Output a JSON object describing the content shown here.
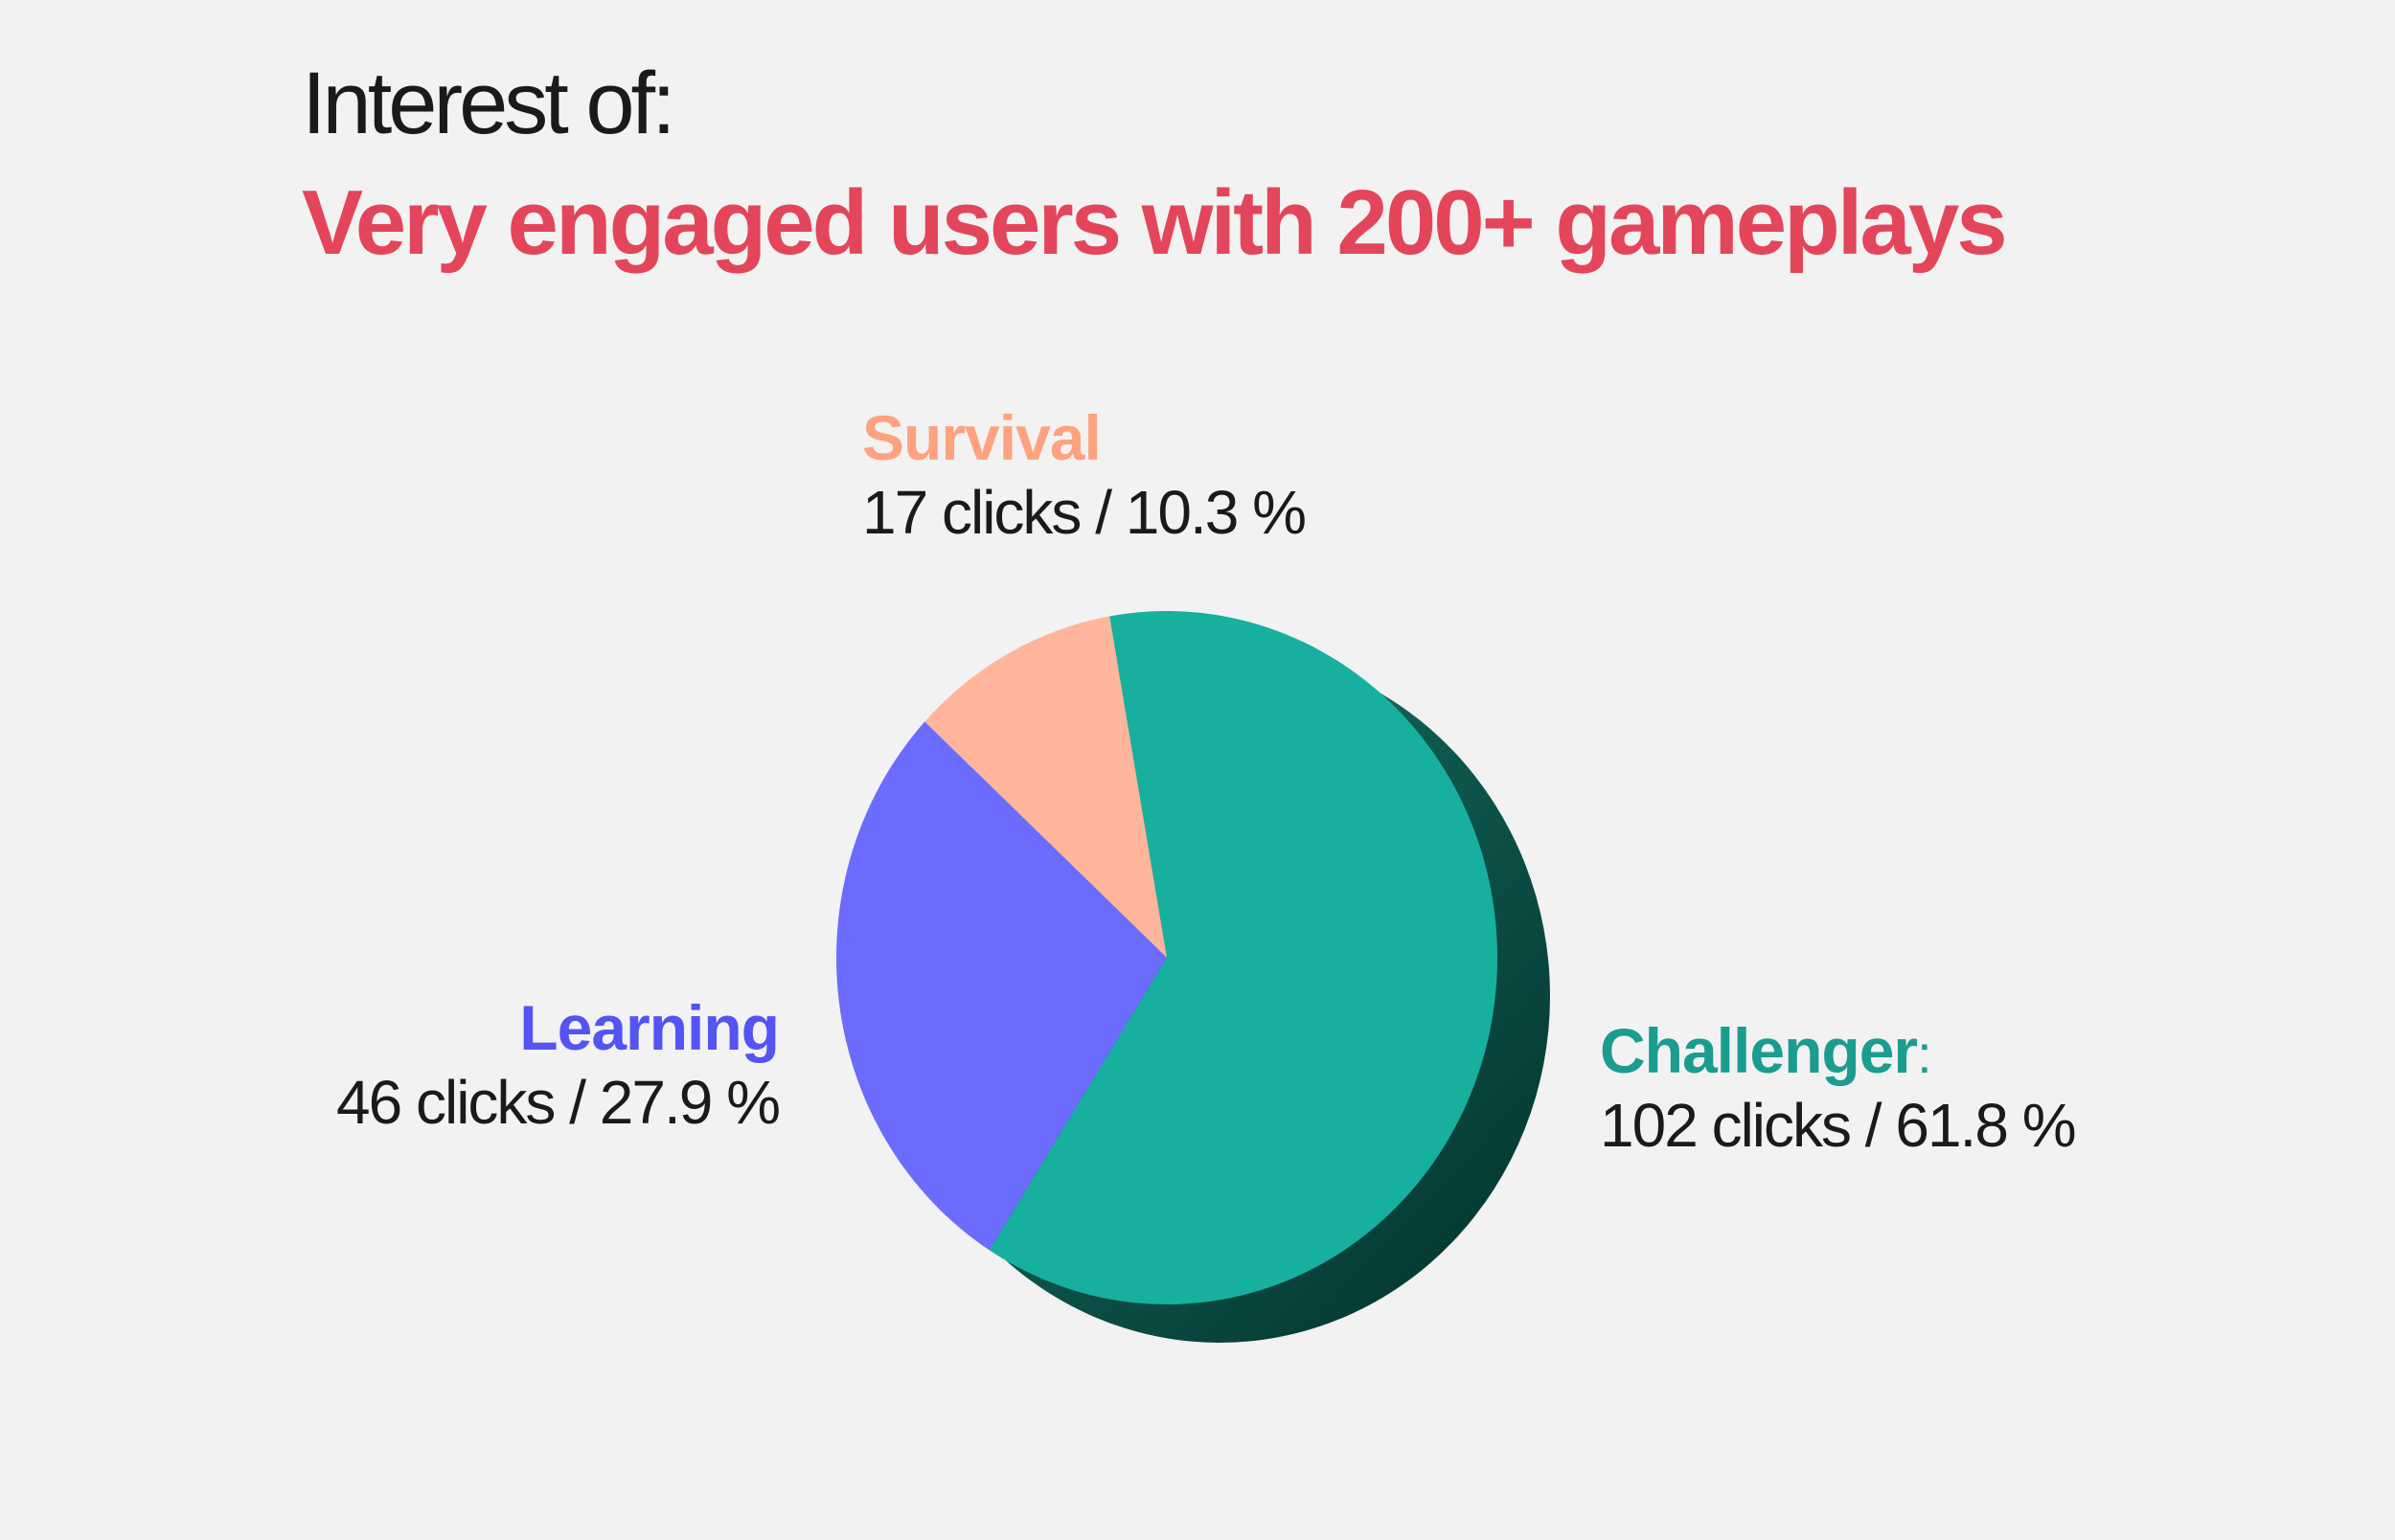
{
  "title": {
    "line1": "Interest of:",
    "line2": "Very engaged users with  200+ gameplays"
  },
  "colors": {
    "title_accent": "#e3465a",
    "background": "#f2f2f2",
    "challenger": "#17b09f",
    "learning": "#6b6bfe",
    "survival": "#ffb59b",
    "shadow_dark": "#02302b"
  },
  "chart_data": {
    "type": "pie",
    "title": "Very engaged users with  200+ gameplays",
    "slices": [
      {
        "name": "Challenger",
        "label": "Challenger",
        "suffix": ":",
        "clicks": 102,
        "percent": 61.8,
        "value_text": "102 clicks / 61.8 %",
        "color": "#17b09f"
      },
      {
        "name": "Learning",
        "label": "Learning",
        "suffix": "",
        "clicks": 46,
        "percent": 27.9,
        "value_text": "46 clicks / 27.9 %",
        "color": "#6b6bfe"
      },
      {
        "name": "Survival",
        "label": "Survival",
        "suffix": "",
        "clicks": 17,
        "percent": 10.3,
        "value_text": "17  clicks / 10.3 %",
        "color": "#ffb59b"
      }
    ]
  }
}
